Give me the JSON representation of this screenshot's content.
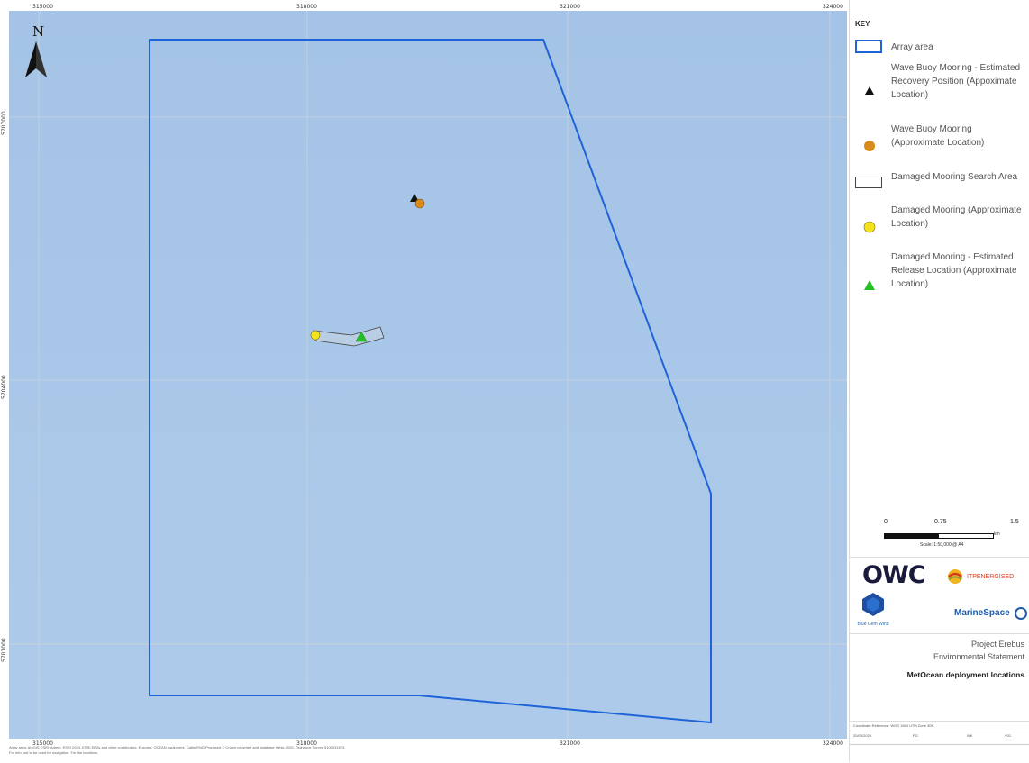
{
  "map": {
    "x_ticks": [
      "315000",
      "318000",
      "321000",
      "324000"
    ],
    "y_ticks": [
      "5707000",
      "5704000",
      "5701000"
    ],
    "north_label": "N",
    "credit_line1": "Array area: ArcGIS ESRI. Admin: ESRI 2024, ESRI EEZs and other contributors. Ensures: OCEAN equipment, Cable/ENG Proposed © Crown copyright and database rights 2025. Ordnance Survey 0100031673.",
    "credit_line2": "For info, not to be used for navigation. For the locations."
  },
  "legend": {
    "title": "KEY",
    "items": [
      {
        "label": "Array area",
        "symbol": "rect-blue"
      },
      {
        "label": "Wave Buoy Mooring - Estimated Recovery Position (Appoximate Location)",
        "symbol": "triangle-black"
      },
      {
        "label": "Wave Buoy Mooring (Approximate Location)",
        "symbol": "circle-orange"
      },
      {
        "label": "Damaged Mooring Search Area",
        "symbol": "rect-grey"
      },
      {
        "label": "Damaged Mooring (Approximate Location)",
        "symbol": "circle-yellow"
      },
      {
        "label": "Damaged Mooring - Estimated Release Location (Approximate Location)",
        "symbol": "triangle-green"
      }
    ]
  },
  "scale": {
    "ticks": [
      "0",
      "0.75",
      "1.5"
    ],
    "unit": "km",
    "text": "Scale: 1:50,000 @ A4"
  },
  "logos": {
    "owc": "OWC",
    "itp": "ITPENERGISED",
    "marinespace": "MarineSpace",
    "bluedeepwind": "Blue Gem Wind"
  },
  "title_block": {
    "project": "Project Erebus",
    "subtitle": "Environmental Statement",
    "title": "MetOcean deployment locations"
  },
  "footer": {
    "crs": "Coordinate Reference: WGS 1984 UTM Zone 30N",
    "date": "20/05/2025",
    "drawn": "PG",
    "checked": "WK",
    "version": "V01"
  },
  "colors": {
    "sea": "#a9c7e8",
    "array_outline": "#1e64d8",
    "grid": "#c9d3dc",
    "wave_buoy": "#d98c1c",
    "damaged_mooring": "#f4e21a",
    "release": "#22c022"
  }
}
